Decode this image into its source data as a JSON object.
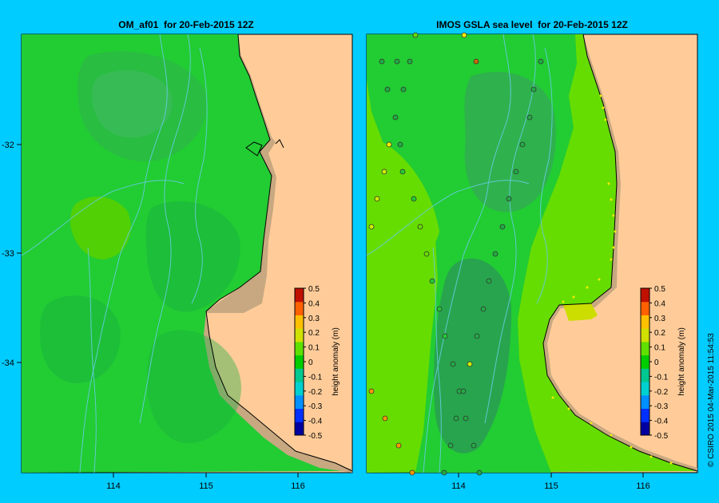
{
  "left_panel": {
    "title": "OM_af01  for 20-Feb-2015 12Z"
  },
  "right_panel": {
    "title": "IMOS GSLA sea level  for 20-Feb-2015 12Z"
  },
  "y_ticks": [
    "-32",
    "-33",
    "-34"
  ],
  "x_ticks": [
    "114",
    "115",
    "116"
  ],
  "colorbar": {
    "label": "height anomaly (m)",
    "ticks": [
      "0.5",
      "0.4",
      "0.3",
      "0.2",
      "0.1",
      "0",
      "-0.1",
      "-0.2",
      "-0.3",
      "-0.4",
      "-0.5"
    ],
    "colors": [
      "#0000a0",
      "#0030ff",
      "#0090ff",
      "#00d0d0",
      "#00c890",
      "#00cc00",
      "#60e000",
      "#d0e000",
      "#ffc000",
      "#ff6000",
      "#c01000"
    ]
  },
  "credit": "© CSIRO 2015   04-Mar-2015 11:54:53",
  "colors": {
    "land": "#ffcc99",
    "shelf": "#c8a880",
    "sea_base": "#22cc33",
    "background": "#00ccff"
  }
}
